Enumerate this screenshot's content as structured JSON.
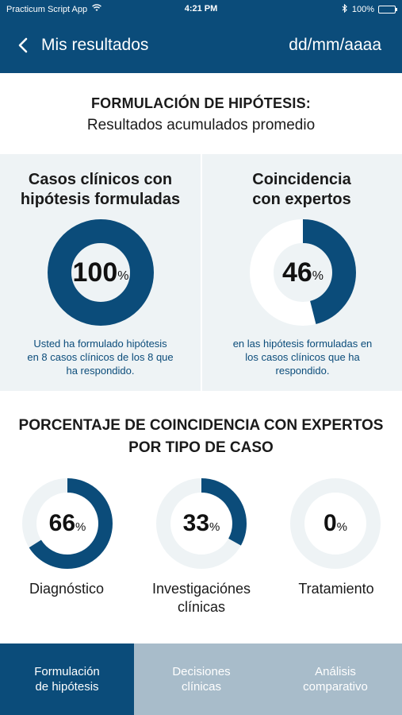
{
  "status_bar": {
    "carrier": "Practicum Script App",
    "time": "4:21 PM",
    "battery": "100%"
  },
  "nav": {
    "title": "Mis resultados",
    "date": "dd/mm/aaaa"
  },
  "header": {
    "title": "FORMULACIÓN DE HIPÓTESIS:",
    "subtitle": "Resultados acumulados promedio"
  },
  "cards": [
    {
      "title_line1": "Casos clínicos con",
      "title_line2": "hipótesis formuladas",
      "value": 100,
      "value_text": "100",
      "unit": "%",
      "desc_line1": "Usted ha formulado hipótesis",
      "desc_line2": "en 8 casos clínicos de los 8 que",
      "desc_line3": "ha respondido."
    },
    {
      "title_line1": "Coincidencia",
      "title_line2": "con expertos",
      "value": 46,
      "value_text": "46",
      "unit": "%",
      "desc_line1": "en las hipótesis formuladas en",
      "desc_line2": "los casos clínicos que ha",
      "desc_line3": "respondido."
    }
  ],
  "section2": {
    "title_line1": "PORCENTAJE DE COINCIDENCIA CON EXPERTOS",
    "title_line2": "POR TIPO DE CASO"
  },
  "types": [
    {
      "value": 66,
      "value_text": "66",
      "unit": "%",
      "label_line1": "Diagnóstico",
      "label_line2": ""
    },
    {
      "value": 33,
      "value_text": "33",
      "unit": "%",
      "label_line1": "Investigaciónes",
      "label_line2": "clínicas"
    },
    {
      "value": 0,
      "value_text": "0",
      "unit": "%",
      "label_line1": "Tratamiento",
      "label_line2": ""
    }
  ],
  "tabs": [
    {
      "line1": "Formulación",
      "line2": "de hipótesis",
      "active": true
    },
    {
      "line1": "Decisiones",
      "line2": "clínicas",
      "active": false
    },
    {
      "line1": "Análisis",
      "line2": "comparativo",
      "active": false
    }
  ],
  "colors": {
    "primary": "#0b4c7a",
    "ring_track_card": "#ffffff",
    "ring_track_mini": "#eef3f5",
    "card_bg": "#eef3f5",
    "tab_inactive": "#a8bcca"
  }
}
